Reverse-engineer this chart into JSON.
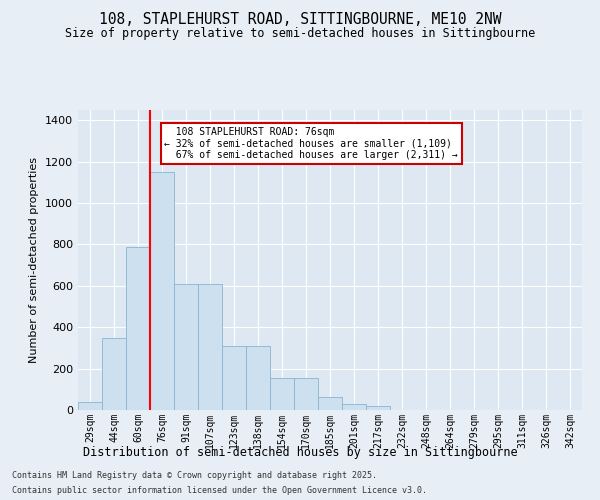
{
  "title": "108, STAPLEHURST ROAD, SITTINGBOURNE, ME10 2NW",
  "subtitle": "Size of property relative to semi-detached houses in Sittingbourne",
  "xlabel": "Distribution of semi-detached houses by size in Sittingbourne",
  "ylabel": "Number of semi-detached properties",
  "categories": [
    "29sqm",
    "44sqm",
    "60sqm",
    "76sqm",
    "91sqm",
    "107sqm",
    "123sqm",
    "138sqm",
    "154sqm",
    "170sqm",
    "185sqm",
    "201sqm",
    "217sqm",
    "232sqm",
    "248sqm",
    "264sqm",
    "279sqm",
    "295sqm",
    "311sqm",
    "326sqm",
    "342sqm"
  ],
  "values": [
    40,
    350,
    790,
    1150,
    610,
    610,
    310,
    310,
    155,
    155,
    65,
    30,
    20,
    0,
    0,
    0,
    0,
    0,
    0,
    0,
    0
  ],
  "bar_color": "#cce0f0",
  "bar_edge_color": "#8ab4d0",
  "highlight_index": 3,
  "property_sqm": 76,
  "pct_smaller": 32,
  "count_smaller": 1109,
  "pct_larger": 67,
  "count_larger": 2311,
  "annotation_text": "108 STAPLEHURST ROAD: 76sqm",
  "ylim": [
    0,
    1450
  ],
  "yticks": [
    0,
    200,
    400,
    600,
    800,
    1000,
    1200,
    1400
  ],
  "footer_line1": "Contains HM Land Registry data © Crown copyright and database right 2025.",
  "footer_line2": "Contains public sector information licensed under the Open Government Licence v3.0.",
  "bg_color": "#e8eef5",
  "plot_bg_color": "#dde8f2",
  "grid_color": "#ffffff",
  "annotation_box_color": "#ffffff",
  "annotation_box_edge": "#cc0000"
}
